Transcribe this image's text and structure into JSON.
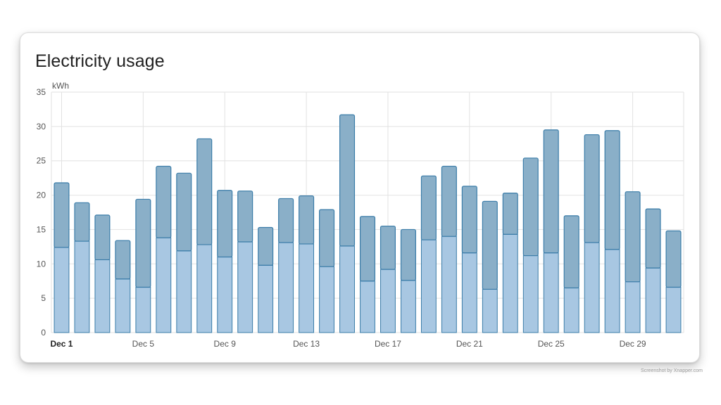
{
  "card": {
    "title": "Electricity usage"
  },
  "watermark": "Screenshot by Xnapper.com",
  "colors": {
    "bar_low": "#a8c7e2",
    "bar_high": "#8aafc8",
    "bar_stroke": "#3a7ca8",
    "grid": "#e2e2e2"
  },
  "chart_data": {
    "type": "bar",
    "stacked": true,
    "unit": "kWh",
    "ylim": [
      0,
      35
    ],
    "y_ticks": [
      0,
      5,
      10,
      15,
      20,
      25,
      30,
      35
    ],
    "categories": [
      "Dec 1",
      "Dec 2",
      "Dec 3",
      "Dec 4",
      "Dec 5",
      "Dec 6",
      "Dec 7",
      "Dec 8",
      "Dec 9",
      "Dec 10",
      "Dec 11",
      "Dec 12",
      "Dec 13",
      "Dec 14",
      "Dec 15",
      "Dec 16",
      "Dec 17",
      "Dec 18",
      "Dec 19",
      "Dec 20",
      "Dec 21",
      "Dec 22",
      "Dec 23",
      "Dec 24",
      "Dec 25",
      "Dec 26",
      "Dec 27",
      "Dec 28",
      "Dec 29",
      "Dec 30",
      "Dec 31"
    ],
    "x_tick_labels": [
      "Dec 1",
      "Dec 5",
      "Dec 9",
      "Dec 13",
      "Dec 17",
      "Dec 21",
      "Dec 25",
      "Dec 29"
    ],
    "bold_tick": "Dec 1",
    "series": [
      {
        "values": [
          12.4,
          13.3,
          10.6,
          7.8,
          6.6,
          13.8,
          11.9,
          12.8,
          11.0,
          13.2,
          9.8,
          13.1,
          12.9,
          9.6,
          12.6,
          7.5,
          9.2,
          7.6,
          13.5,
          14.0,
          11.6,
          6.3,
          14.3,
          11.2,
          11.6,
          6.5,
          13.1,
          12.1,
          7.4,
          9.4,
          6.6
        ]
      },
      {
        "values": [
          9.4,
          5.6,
          6.5,
          5.6,
          12.8,
          10.4,
          11.3,
          15.4,
          9.7,
          7.4,
          5.5,
          6.4,
          7.0,
          8.3,
          19.1,
          9.4,
          6.3,
          7.4,
          9.3,
          10.2,
          9.7,
          12.8,
          6.0,
          14.2,
          17.9,
          10.5,
          15.7,
          17.3,
          13.1,
          8.6,
          8.2
        ]
      }
    ]
  }
}
